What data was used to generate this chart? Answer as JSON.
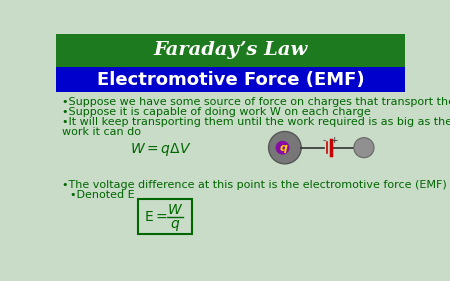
{
  "title": "Faraday’s Law",
  "subtitle": "Electromotive Force (EMF)",
  "title_bg": "#1e7a1e",
  "subtitle_bg": "#0000cc",
  "body_bg": "#c8dcc8",
  "title_color": "#ffffff",
  "subtitle_color": "#ffffff",
  "body_text_color": "#006600",
  "bullet1": "Suppose we have some source of force on charges that transport them",
  "bullet2": "Suppose it is capable of doing work W on each charge",
  "bullet3a": "It will keep transporting them until the work required is as big as the",
  "bullet3b": "work it can do",
  "formula1": "$W = q\\Delta V$",
  "bullet4": "The voltage difference at this point is the electromotive force (EMF)",
  "bullet5": "Denoted E",
  "formula2_lhs": "$\\mathrm{E} = $",
  "formula2_num": "$W$",
  "formula2_den": "$q$",
  "text_fontsize": 8.0,
  "title_fontsize": 14,
  "subtitle_fontsize": 13,
  "formula_fontsize": 9
}
